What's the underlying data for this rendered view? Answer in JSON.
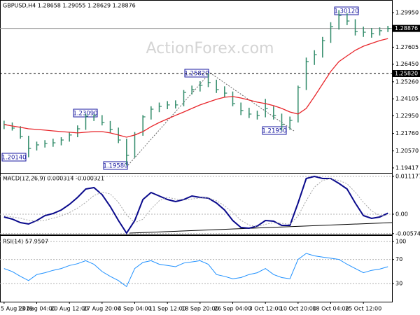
{
  "chart_data": [
    {
      "type": "ohlc",
      "title": "GBPUSD,H4  1.28658 1.29055 1.28629 1.28876",
      "watermark": "ActionForex.com",
      "color": "#2f8a68",
      "high": [
        1.2262,
        1.225,
        1.2225,
        1.216,
        1.212,
        1.213,
        1.214,
        1.215,
        1.2185,
        1.223,
        1.2309,
        1.2305,
        1.23,
        1.226,
        1.2215,
        1.214,
        1.2185,
        1.23,
        1.236,
        1.2385,
        1.2395,
        1.24,
        1.247,
        1.25,
        1.253,
        1.2582,
        1.254,
        1.2495,
        1.246,
        1.2385,
        1.235,
        1.233,
        1.241,
        1.236,
        1.231,
        1.229,
        1.25,
        1.269,
        1.274,
        1.283,
        1.293,
        1.3012,
        1.299,
        1.295,
        1.29,
        1.289,
        1.2895,
        1.2905
      ],
      "low": [
        1.2205,
        1.2195,
        1.214,
        1.2014,
        1.206,
        1.208,
        1.2085,
        1.2095,
        1.212,
        1.215,
        1.22,
        1.226,
        1.223,
        1.218,
        1.211,
        1.1958,
        1.201,
        1.216,
        1.227,
        1.232,
        1.234,
        1.2345,
        1.236,
        1.244,
        1.246,
        1.249,
        1.245,
        1.242,
        1.236,
        1.23,
        1.228,
        1.227,
        1.2285,
        1.227,
        1.2195,
        1.22,
        1.225,
        1.247,
        1.264,
        1.269,
        1.279,
        1.288,
        1.291,
        1.284,
        1.283,
        1.2825,
        1.284,
        1.2863
      ],
      "close": [
        1.2236,
        1.2212,
        1.2155,
        1.2074,
        1.2098,
        1.2108,
        1.2112,
        1.2131,
        1.2165,
        1.2207,
        1.2293,
        1.2298,
        1.225,
        1.2203,
        1.2131,
        1.2027,
        1.2169,
        1.2288,
        1.234,
        1.2359,
        1.2369,
        1.2369,
        1.2454,
        1.2473,
        1.2502,
        1.2521,
        1.2473,
        1.2449,
        1.2378,
        1.2331,
        1.2307,
        1.2298,
        1.2345,
        1.2298,
        1.2236,
        1.2264,
        1.2487,
        1.2663,
        1.271,
        1.2805,
        1.29,
        1.2976,
        1.2938,
        1.2867,
        1.2862,
        1.2853,
        1.2872,
        1.28876
      ],
      "ma_color": "#e8262b",
      "ma_values": [
        1.2236,
        1.2226,
        1.2217,
        1.2207,
        1.2203,
        1.2198,
        1.2193,
        1.2188,
        1.2184,
        1.2179,
        1.2184,
        1.2188,
        1.2188,
        1.2179,
        1.2165,
        1.215,
        1.2165,
        1.2188,
        1.2222,
        1.225,
        1.2274,
        1.2298,
        1.2321,
        1.2345,
        1.2369,
        1.2388,
        1.2407,
        1.2421,
        1.2426,
        1.2416,
        1.2402,
        1.2388,
        1.2378,
        1.2364,
        1.2345,
        1.2321,
        1.2307,
        1.2345,
        1.2426,
        1.2511,
        1.2596,
        1.2663,
        1.2701,
        1.2739,
        1.2767,
        1.2786,
        1.2805,
        1.2819
      ],
      "ylim": [
        1.1908,
        1.3071
      ],
      "yticks": [
        {
          "value": 1.2995,
          "label": "1.29950"
        },
        1.27605,
        {
          "value": 1.2645,
          "label": "1.26450"
        },
        {
          "value": 1.2526,
          "label": "1.25260"
        },
        1.24105,
        {
          "value": 1.2295,
          "label": "1.22950"
        },
        {
          "value": 1.2176,
          "label": "1.21760"
        },
        {
          "value": 1.2057,
          "label": "1.20570"
        },
        1.19417
      ],
      "price_lines": [
        {
          "value": 1.28876,
          "label": "1.28876"
        },
        {
          "value": 1.2582,
          "label": "1.25820"
        }
      ],
      "annotations": [
        "1.30120",
        "1.25820",
        "1.23090",
        "1.21950",
        "1.20140",
        "1.19580"
      ]
    },
    {
      "type": "line",
      "title": "MACD(12,26,9) 0.000314 -0.000321",
      "grid": true,
      "series": [
        {
          "color": "#0a0a8c",
          "values": [
            -0.00083,
            -0.00145,
            -0.00248,
            -0.0029,
            -0.00186,
            -0.00041,
            0.00021,
            0.00124,
            0.0029,
            0.00497,
            0.00745,
            0.00787,
            0.0058,
            0.00228,
            -0.00186,
            -0.00559,
            -0.00186,
            0.00435,
            0.00642,
            0.00538,
            0.00435,
            0.00373,
            0.00435,
            0.00538,
            0.00497,
            0.00476,
            0.00331,
            0.00124,
            -0.00186,
            -0.00393,
            -0.00414,
            -0.00352,
            -0.00186,
            -0.00207,
            -0.00331,
            -0.00331,
            0.00331,
            0.01056,
            0.01118,
            0.01056,
            0.01056,
            0.00911,
            0.00745,
            0.00331,
            -0.00041,
            -0.00124,
            -0.00083,
            0.00031
          ]
        },
        {
          "color": "#a8a8a8",
          "dashed": true,
          "values": [
            -0.0005,
            -0.0008,
            -0.0012,
            -0.0018,
            -0.0021,
            -0.0018,
            -0.0012,
            -0.0005,
            0.0005,
            0.0018,
            0.0035,
            0.0055,
            0.0065,
            0.006,
            0.0035,
            -0.0002,
            -0.0025,
            -0.0015,
            0.0015,
            0.004,
            0.005,
            0.0045,
            0.0042,
            0.0045,
            0.0048,
            0.0048,
            0.004,
            0.0025,
            0.0005,
            -0.0018,
            -0.0032,
            -0.0037,
            -0.003,
            -0.0025,
            -0.0027,
            -0.003,
            -0.0005,
            0.004,
            0.008,
            0.01,
            0.0105,
            0.01,
            0.009,
            0.0065,
            0.0035,
            0.001,
            -0.0004,
            -0.00032
          ]
        }
      ],
      "ylim": [
        -0.006,
        0.012
      ],
      "yticks": [
        0.011177,
        {
          "value": 0,
          "label": "0.00"
        },
        -0.005746
      ]
    },
    {
      "type": "line",
      "title": "RSI(14) 57.9507",
      "grid": true,
      "series": [
        {
          "color": "#1e90ff",
          "values": [
            55,
            50,
            42,
            35,
            45,
            48,
            52,
            55,
            60,
            63,
            68,
            62,
            50,
            42,
            35,
            25,
            55,
            65,
            68,
            62,
            60,
            58,
            64,
            66,
            68,
            62,
            45,
            42,
            38,
            40,
            45,
            48,
            55,
            45,
            40,
            38,
            70,
            80,
            76,
            74,
            72,
            70,
            62,
            55,
            48,
            52,
            54,
            57.95
          ]
        }
      ],
      "ylim": [
        0,
        109
      ],
      "yticks": [
        100,
        70,
        30
      ],
      "categories": [
        "5 Aug 2019",
        null,
        null,
        null,
        "13 Aug 04:00",
        null,
        null,
        null,
        "20 Aug 12:00",
        null,
        null,
        null,
        "27 Aug 20:00",
        null,
        null,
        null,
        "4 Sep 04:00",
        null,
        null,
        null,
        "11 Sep 12:00",
        null,
        null,
        null,
        "18 Sep 20:00",
        null,
        null,
        null,
        "26 Sep 04:00",
        null,
        null,
        null,
        "3 Oct 12:00",
        null,
        null,
        null,
        "10 Oct 20:00",
        null,
        null,
        null,
        "18 Oct 04:00",
        null,
        null,
        null,
        "25 Oct 12:00",
        null,
        null,
        null
      ]
    }
  ]
}
